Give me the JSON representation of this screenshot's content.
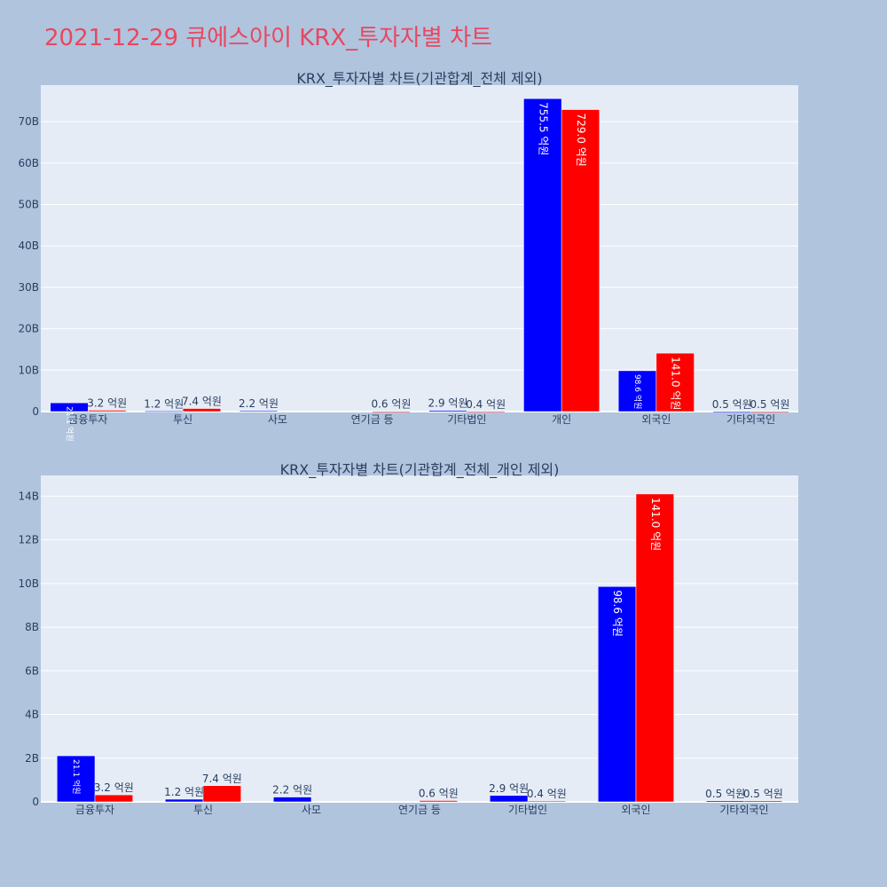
{
  "page": {
    "title": "2021-12-29 큐에스아이 KRX_투자자별 차트"
  },
  "colors": {
    "background": "#b0c4de",
    "plot_bg": "#e5ecf6",
    "series_a": "#0000ff",
    "series_b": "#ff0000",
    "title": "#e8475f",
    "text": "#2a3f5f"
  },
  "chart_data": [
    {
      "type": "bar",
      "title": "KRX_투자자별 차트(기관합계_전체 제외)",
      "categories": [
        "금융투자",
        "투신",
        "사모",
        "연기금 등",
        "기타법인",
        "개인",
        "외국인",
        "기타외국인"
      ],
      "series": [
        {
          "values": [
            2110000000,
            120000000,
            220000000,
            0,
            290000000,
            75550000000,
            9860000000,
            50000000
          ],
          "labels": [
            "21.1 억원",
            "1.2 억원",
            "2.2 억원",
            "",
            "2.9 억원",
            "755.5 억원",
            "98.6 억원",
            "0.5 억원"
          ]
        },
        {
          "values": [
            320000000,
            740000000,
            0,
            60000000,
            40000000,
            72900000000,
            14100000000,
            50000000
          ],
          "labels": [
            "3.2 억원",
            "7.4 억원",
            "",
            "0.6 억원",
            "0.4 억원",
            "729.0 억원",
            "141.0 억원",
            "0.5 억원"
          ]
        }
      ],
      "yticks": [
        0,
        10000000000,
        20000000000,
        30000000000,
        40000000000,
        50000000000,
        60000000000,
        70000000000
      ],
      "ytick_labels": [
        "0",
        "10B",
        "20B",
        "30B",
        "40B",
        "50B",
        "60B",
        "70B"
      ],
      "ylim": [
        0,
        78800000000
      ],
      "grid": true,
      "legend": "none"
    },
    {
      "type": "bar",
      "title": "KRX_투자자별 차트(기관합계_전체_개인 제외)",
      "categories": [
        "금융투자",
        "투신",
        "사모",
        "연기금 등",
        "기타법인",
        "외국인",
        "기타외국인"
      ],
      "series": [
        {
          "values": [
            2110000000,
            120000000,
            220000000,
            0,
            290000000,
            9860000000,
            50000000
          ],
          "labels": [
            "21.1 억원",
            "1.2 억원",
            "2.2 억원",
            "",
            "2.9 억원",
            "98.6 억원",
            "0.5 억원"
          ]
        },
        {
          "values": [
            320000000,
            740000000,
            0,
            60000000,
            40000000,
            14100000000,
            50000000
          ],
          "labels": [
            "3.2 억원",
            "7.4 억원",
            "",
            "0.6 억원",
            "0.4 억원",
            "141.0 억원",
            "0.5 억원"
          ]
        }
      ],
      "yticks": [
        0,
        2000000000,
        4000000000,
        6000000000,
        8000000000,
        10000000000,
        12000000000,
        14000000000
      ],
      "ytick_labels": [
        "0",
        "2B",
        "4B",
        "6B",
        "8B",
        "10B",
        "12B",
        "14B"
      ],
      "ylim": [
        0,
        14950000000
      ],
      "grid": true,
      "legend": "none"
    }
  ]
}
